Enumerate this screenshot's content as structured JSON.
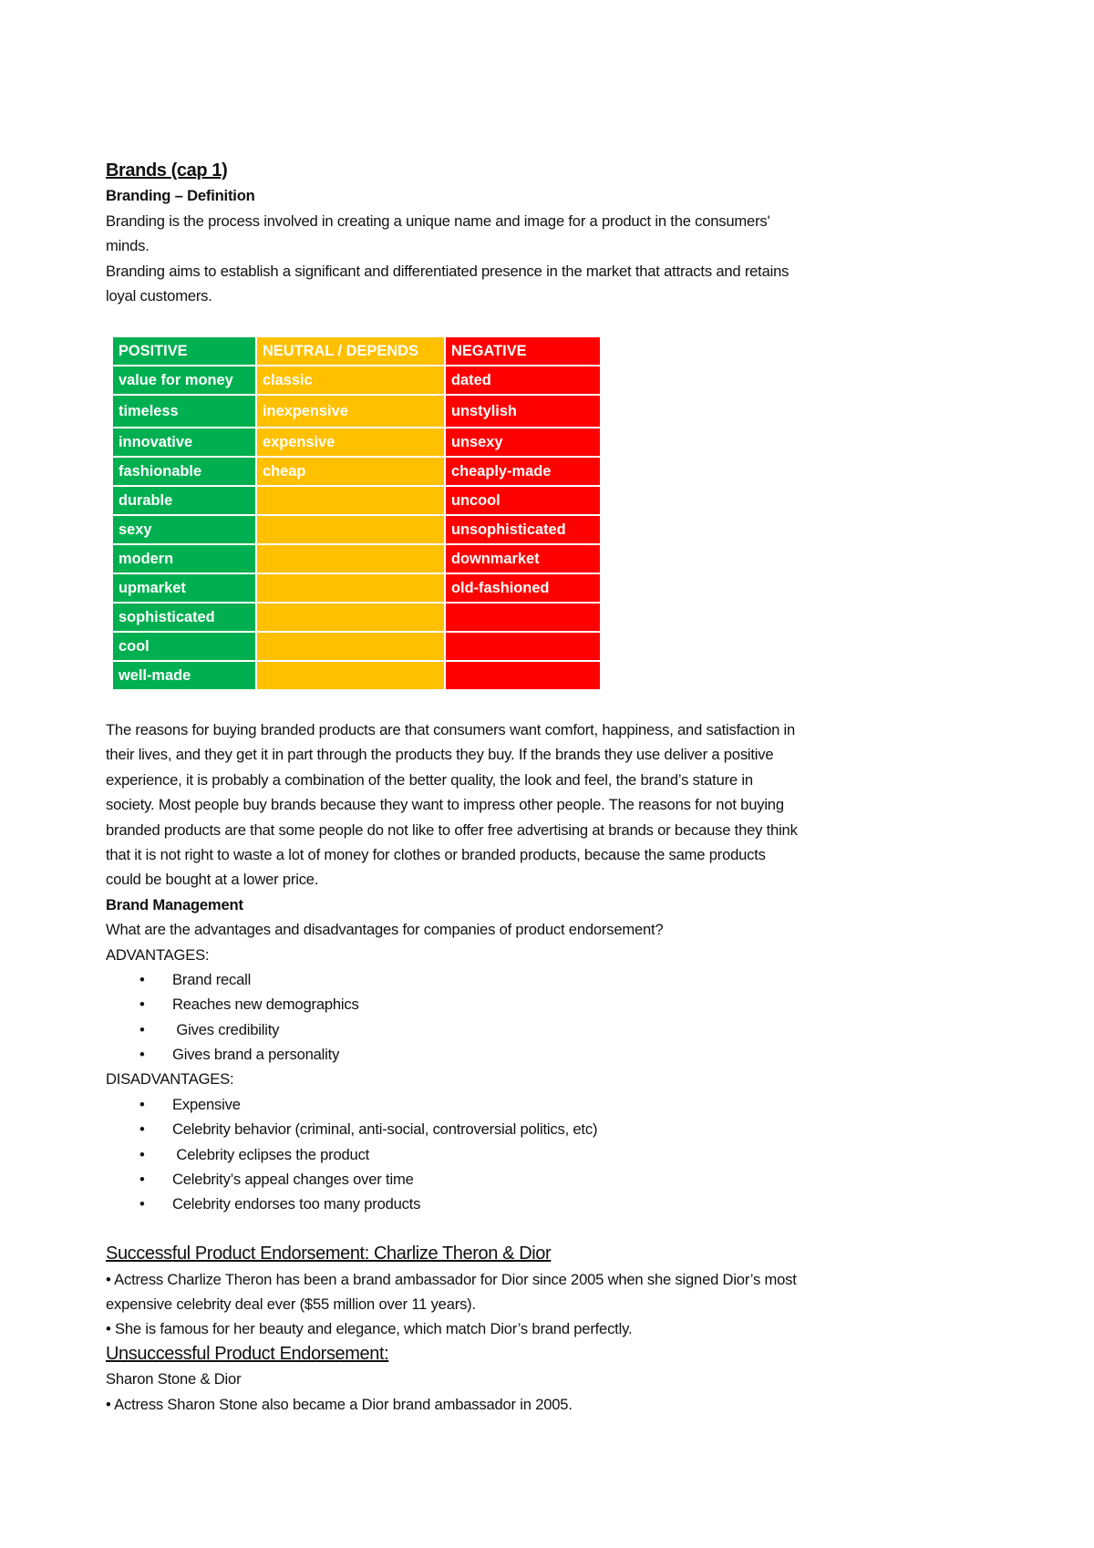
{
  "title": "Brands (cap 1)",
  "definition_heading": "Branding – Definition",
  "definition_lines": [
    "Branding is the process involved in creating a unique name and image for a product in the consumers'",
    "minds.",
    "Branding aims to establish a significant and differentiated presence in the market that attracts and retains",
    "loyal customers."
  ],
  "colors": {
    "positive": "#00b050",
    "neutral": "#ffc000",
    "negative": "#ff0000"
  },
  "table": {
    "headers": [
      "POSITIVE",
      "NEUTRAL / DEPENDS",
      "NEGATIVE"
    ],
    "rows": [
      [
        "value for money",
        "classic",
        "dated"
      ],
      [
        "timeless",
        "inexpensive",
        "unstylish"
      ],
      [
        "innovative",
        "expensive",
        "unsexy"
      ],
      [
        "fashionable",
        "cheap",
        "cheaply-made"
      ],
      [
        "durable",
        "",
        "uncool"
      ],
      [
        "sexy",
        "",
        "unsophisticated"
      ],
      [
        "modern",
        "",
        "downmarket"
      ],
      [
        "upmarket",
        "",
        "old-fashioned"
      ],
      [
        "sophisticated",
        "",
        ""
      ],
      [
        "cool",
        "",
        ""
      ],
      [
        "well-made",
        "",
        ""
      ]
    ]
  },
  "reasons_lines": [
    "The reasons for buying branded products are that consumers want comfort, happiness, and satisfaction in",
    "their lives, and they get it in part through the products they buy. If the brands they use deliver a positive",
    "experience, it is probably a combination of the better quality, the look and feel, the brand’s stature in",
    "society. Most people buy brands because they want to impress other people. The reasons for not buying",
    "branded products are that some people do not like to offer free advertising at brands or because they think",
    "that it is not right to waste a lot of money for clothes or branded products, because the same products",
    "could be bought at a lower price."
  ],
  "brand_management": {
    "heading": "Brand Management",
    "question": "What are the advantages and disadvantages for companies of product endorsement?",
    "advantages_label": "ADVANTAGES:",
    "advantages": [
      "Brand recall",
      "Reaches new demographics",
      " Gives credibility",
      "Gives brand a personality"
    ],
    "disadvantages_label": "DISADVANTAGES:",
    "disadvantages": [
      "Expensive",
      "Celebrity behavior (criminal, anti-social, controversial politics, etc)",
      " Celebrity eclipses the product",
      "Celebrity’s appeal changes over time",
      "Celebrity endorses too many products"
    ]
  },
  "bullet_symbol": "•",
  "successful": {
    "heading": "Successful Product Endorsement: Charlize Theron & Dior",
    "lines": [
      "• Actress Charlize Theron has been a brand ambassador for Dior since 2005 when she signed Dior’s most",
      "expensive celebrity deal ever ($55 million over 11 years).",
      "• She is famous for her beauty and elegance, which match Dior’s brand perfectly."
    ]
  },
  "unsuccessful": {
    "heading": "Unsuccessful Product Endorsement:",
    "subheading": "Sharon Stone & Dior",
    "lines": [
      "• Actress Sharon Stone also became a Dior brand ambassador in 2005."
    ]
  }
}
